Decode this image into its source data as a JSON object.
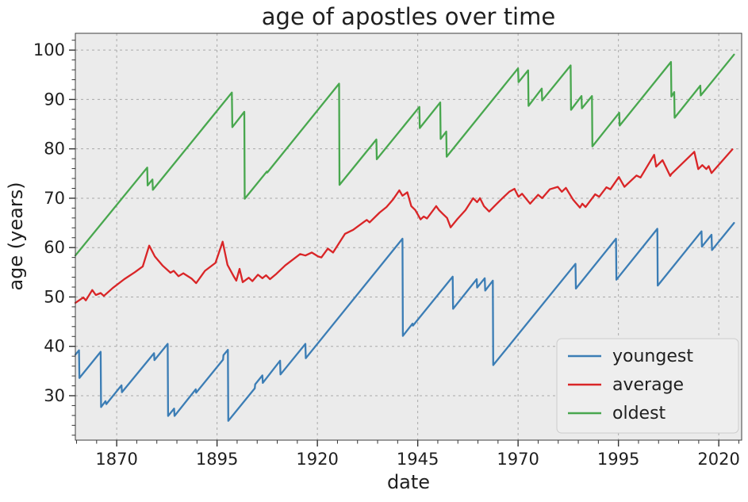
{
  "chart_data": {
    "type": "line",
    "title": "age of apostles over time",
    "xlabel": "date",
    "ylabel": "age (years)",
    "grid": "major-only, dashed",
    "x_axis": {
      "min": 1859.7,
      "max": 2025.7,
      "major_ticks": [
        1870,
        1895,
        1920,
        1945,
        1970,
        1995,
        2020
      ],
      "minor_tick_step": 5
    },
    "y_axis": {
      "min": 21.0,
      "max": 103.4,
      "major_ticks": [
        30,
        40,
        50,
        60,
        70,
        80,
        90,
        100
      ],
      "minor_tick_step": 2
    },
    "legend": {
      "position": "lower right",
      "entries": [
        "youngest",
        "average",
        "oldest"
      ]
    },
    "series": [
      {
        "name": "youngest",
        "color": "#3b7db5",
        "points": [
          [
            1859.7,
            38.3
          ],
          [
            1860.6,
            39.2
          ],
          [
            1860.7,
            33.6
          ],
          [
            1866.0,
            38.9
          ],
          [
            1866.1,
            27.7
          ],
          [
            1867.2,
            28.9
          ],
          [
            1867.4,
            28.3
          ],
          [
            1871.2,
            32.1
          ],
          [
            1871.3,
            30.7
          ],
          [
            1879.3,
            38.6
          ],
          [
            1879.4,
            37.2
          ],
          [
            1882.7,
            40.5
          ],
          [
            1882.8,
            25.9
          ],
          [
            1884.3,
            27.4
          ],
          [
            1884.4,
            25.9
          ],
          [
            1889.7,
            31.3
          ],
          [
            1889.8,
            30.6
          ],
          [
            1896.5,
            37.3
          ],
          [
            1896.6,
            38.2
          ],
          [
            1897.7,
            39.3
          ],
          [
            1897.8,
            24.9
          ],
          [
            1904.4,
            31.5
          ],
          [
            1904.5,
            32.3
          ],
          [
            1906.3,
            34.1
          ],
          [
            1906.4,
            32.6
          ],
          [
            1910.7,
            37.1
          ],
          [
            1910.8,
            34.3
          ],
          [
            1917.0,
            40.5
          ],
          [
            1917.1,
            37.6
          ],
          [
            1941.2,
            61.8
          ],
          [
            1941.3,
            42.1
          ],
          [
            1943.7,
            44.6
          ],
          [
            1943.8,
            44.2
          ],
          [
            1953.7,
            54.1
          ],
          [
            1953.8,
            47.6
          ],
          [
            1959.7,
            53.6
          ],
          [
            1959.8,
            51.9
          ],
          [
            1961.7,
            53.8
          ],
          [
            1961.8,
            51.3
          ],
          [
            1963.7,
            53.3
          ],
          [
            1963.8,
            36.2
          ],
          [
            1984.3,
            56.7
          ],
          [
            1984.4,
            51.7
          ],
          [
            1994.4,
            61.8
          ],
          [
            1994.5,
            53.5
          ],
          [
            2004.7,
            63.8
          ],
          [
            2004.8,
            52.3
          ],
          [
            2015.7,
            63.3
          ],
          [
            2015.8,
            60.2
          ],
          [
            2018.2,
            62.6
          ],
          [
            2018.3,
            59.5
          ],
          [
            2023.8,
            65.0
          ]
        ]
      },
      {
        "name": "average",
        "color": "#d92527",
        "points": [
          [
            1859.7,
            48.8
          ],
          [
            1861.7,
            49.9
          ],
          [
            1862.3,
            49.3
          ],
          [
            1863.9,
            51.4
          ],
          [
            1864.8,
            50.4
          ],
          [
            1866.0,
            50.8
          ],
          [
            1866.8,
            50.2
          ],
          [
            1869.0,
            51.8
          ],
          [
            1871.9,
            53.6
          ],
          [
            1874.5,
            55.0
          ],
          [
            1876.5,
            56.2
          ],
          [
            1878.1,
            60.4
          ],
          [
            1879.5,
            58.2
          ],
          [
            1881.5,
            56.3
          ],
          [
            1883.4,
            54.9
          ],
          [
            1884.2,
            55.3
          ],
          [
            1885.4,
            54.2
          ],
          [
            1886.6,
            54.8
          ],
          [
            1888.7,
            53.7
          ],
          [
            1889.8,
            52.8
          ],
          [
            1892.0,
            55.3
          ],
          [
            1894.6,
            56.9
          ],
          [
            1896.4,
            61.2
          ],
          [
            1897.6,
            56.5
          ],
          [
            1899.2,
            54.1
          ],
          [
            1899.8,
            53.3
          ],
          [
            1900.6,
            55.7
          ],
          [
            1901.4,
            53.0
          ],
          [
            1902.9,
            53.9
          ],
          [
            1903.8,
            53.2
          ],
          [
            1905.2,
            54.5
          ],
          [
            1906.3,
            53.8
          ],
          [
            1907.2,
            54.4
          ],
          [
            1908.2,
            53.6
          ],
          [
            1909.8,
            54.7
          ],
          [
            1912.0,
            56.4
          ],
          [
            1915.7,
            58.7
          ],
          [
            1917.0,
            58.4
          ],
          [
            1918.6,
            59.0
          ],
          [
            1920.2,
            58.2
          ],
          [
            1921.0,
            58.0
          ],
          [
            1922.6,
            59.8
          ],
          [
            1923.9,
            59.0
          ],
          [
            1926.9,
            62.8
          ],
          [
            1928.9,
            63.6
          ],
          [
            1931.6,
            65.2
          ],
          [
            1932.3,
            65.6
          ],
          [
            1933.0,
            65.1
          ],
          [
            1935.5,
            67.1
          ],
          [
            1937.2,
            68.2
          ],
          [
            1938.8,
            69.7
          ],
          [
            1940.4,
            71.6
          ],
          [
            1941.2,
            70.5
          ],
          [
            1942.4,
            71.2
          ],
          [
            1943.4,
            68.4
          ],
          [
            1944.4,
            67.6
          ],
          [
            1945.7,
            65.7
          ],
          [
            1946.5,
            66.3
          ],
          [
            1947.3,
            65.9
          ],
          [
            1949.6,
            68.4
          ],
          [
            1950.3,
            67.6
          ],
          [
            1951.3,
            66.8
          ],
          [
            1952.3,
            66.0
          ],
          [
            1953.2,
            64.1
          ],
          [
            1954.9,
            65.8
          ],
          [
            1956.9,
            67.6
          ],
          [
            1958.8,
            70.0
          ],
          [
            1959.8,
            69.2
          ],
          [
            1960.5,
            70.0
          ],
          [
            1961.5,
            68.4
          ],
          [
            1962.8,
            67.3
          ],
          [
            1964.1,
            68.4
          ],
          [
            1966.1,
            70.0
          ],
          [
            1967.8,
            71.3
          ],
          [
            1969.1,
            71.9
          ],
          [
            1970.1,
            70.3
          ],
          [
            1971.0,
            70.9
          ],
          [
            1972.0,
            69.9
          ],
          [
            1973.0,
            68.9
          ],
          [
            1975.0,
            70.7
          ],
          [
            1976.0,
            70.0
          ],
          [
            1977.9,
            71.8
          ],
          [
            1979.9,
            72.3
          ],
          [
            1980.9,
            71.3
          ],
          [
            1981.9,
            72.1
          ],
          [
            1983.7,
            69.7
          ],
          [
            1985.4,
            68.1
          ],
          [
            1986.0,
            68.9
          ],
          [
            1986.8,
            68.2
          ],
          [
            1989.2,
            70.8
          ],
          [
            1990.2,
            70.3
          ],
          [
            1992.0,
            72.2
          ],
          [
            1993.0,
            71.8
          ],
          [
            1995.1,
            74.3
          ],
          [
            1996.5,
            72.3
          ],
          [
            1999.5,
            74.6
          ],
          [
            2000.5,
            74.2
          ],
          [
            2003.9,
            78.8
          ],
          [
            2004.4,
            76.4
          ],
          [
            2006.0,
            77.7
          ],
          [
            2007.9,
            74.5
          ],
          [
            2008.2,
            74.9
          ],
          [
            2013.9,
            79.4
          ],
          [
            2014.9,
            75.9
          ],
          [
            2015.9,
            76.7
          ],
          [
            2016.9,
            75.9
          ],
          [
            2017.5,
            76.5
          ],
          [
            2018.2,
            75.1
          ],
          [
            2023.4,
            79.9
          ]
        ]
      },
      {
        "name": "oldest",
        "color": "#48a74e",
        "points": [
          [
            1859.7,
            58.4
          ],
          [
            1877.6,
            76.2
          ],
          [
            1877.7,
            72.6
          ],
          [
            1878.9,
            73.8
          ],
          [
            1879.0,
            71.7
          ],
          [
            1898.7,
            91.4
          ],
          [
            1898.8,
            84.4
          ],
          [
            1901.8,
            87.5
          ],
          [
            1901.9,
            69.9
          ],
          [
            1907.4,
            75.4
          ],
          [
            1907.5,
            75.2
          ],
          [
            1925.4,
            93.2
          ],
          [
            1925.5,
            72.7
          ],
          [
            1934.7,
            81.9
          ],
          [
            1934.8,
            77.9
          ],
          [
            1945.4,
            88.5
          ],
          [
            1945.5,
            84.2
          ],
          [
            1950.6,
            89.4
          ],
          [
            1950.7,
            82.0
          ],
          [
            1952.1,
            83.5
          ],
          [
            1952.2,
            78.4
          ],
          [
            1970.0,
            96.3
          ],
          [
            1970.1,
            93.5
          ],
          [
            1972.5,
            95.9
          ],
          [
            1972.6,
            88.7
          ],
          [
            1975.9,
            92.2
          ],
          [
            1976.0,
            89.8
          ],
          [
            1983.1,
            96.9
          ],
          [
            1983.2,
            87.9
          ],
          [
            1985.8,
            90.7
          ],
          [
            1985.9,
            88.2
          ],
          [
            1988.4,
            90.7
          ],
          [
            1988.5,
            80.5
          ],
          [
            1995.2,
            87.3
          ],
          [
            1995.3,
            84.7
          ],
          [
            2008.1,
            97.6
          ],
          [
            2008.2,
            90.6
          ],
          [
            2008.9,
            91.5
          ],
          [
            2009.0,
            86.3
          ],
          [
            2015.4,
            92.8
          ],
          [
            2015.5,
            90.8
          ],
          [
            2023.8,
            99.1
          ]
        ]
      }
    ]
  },
  "colors": {
    "figure_bg": "#ffffff",
    "plot_bg": "#ebebeb",
    "grid": "#a9a9a9",
    "spine": "#3c3c3c",
    "tick": "#333333",
    "legend_bg": "#eeeeee",
    "legend_border": "#cccccc"
  }
}
